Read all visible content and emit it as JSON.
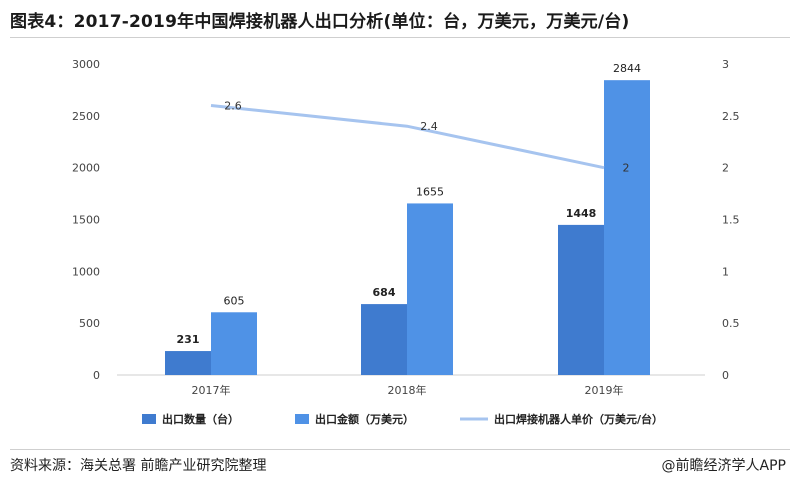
{
  "title": "图表4：2017-2019年中国焊接机器人出口分析(单位：台，万美元，万美元/台)",
  "source": "资料来源：海关总署 前瞻产业研究院整理",
  "credit": "@前瞻经济学人APP",
  "colors": {
    "quantity": "#3f7bcf",
    "amount": "#4f92e6",
    "unit_price": "#a6c4ef",
    "axis_text": "#444444",
    "grid": "#d9d9d9"
  },
  "chart_data": {
    "type": "bar",
    "categories": [
      "2017年",
      "2018年",
      "2019年"
    ],
    "series": [
      {
        "name": "出口数量（台）",
        "axis": "left",
        "values": [
          231,
          684,
          1448
        ]
      },
      {
        "name": "出口金额（万美元）",
        "axis": "left",
        "values": [
          605,
          1655,
          2844
        ]
      },
      {
        "name": "出口焊接机器人单价（万美元/台）",
        "axis": "right",
        "type": "line",
        "values": [
          2.6,
          2.4,
          2
        ]
      }
    ],
    "y_left": {
      "ylim": [
        0,
        3000
      ],
      "ticks": [
        0,
        500,
        1000,
        1500,
        2000,
        2500,
        3000
      ]
    },
    "y_right": {
      "ylim": [
        0,
        3
      ],
      "ticks": [
        "0",
        "0.5",
        "1",
        "1.5",
        "2",
        "2.5",
        "3"
      ]
    },
    "legend": "bottom",
    "grid": false
  }
}
